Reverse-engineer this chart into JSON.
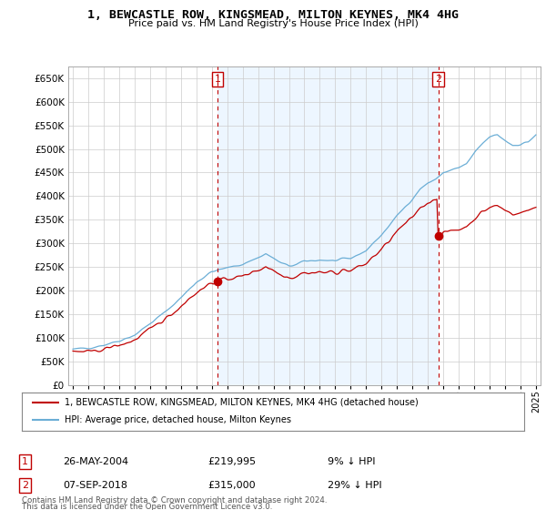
{
  "title": "1, BEWCASTLE ROW, KINGSMEAD, MILTON KEYNES, MK4 4HG",
  "subtitle": "Price paid vs. HM Land Registry's House Price Index (HPI)",
  "sale1_date": "26-MAY-2004",
  "sale1_price": 219995,
  "sale2_date": "07-SEP-2018",
  "sale2_price": 315000,
  "sale1_pct": "9% ↓ HPI",
  "sale2_pct": "29% ↓ HPI",
  "legend_line1": "1, BEWCASTLE ROW, KINGSMEAD, MILTON KEYNES, MK4 4HG (detached house)",
  "legend_line2": "HPI: Average price, detached house, Milton Keynes",
  "footer1": "Contains HM Land Registry data © Crown copyright and database right 2024.",
  "footer2": "This data is licensed under the Open Government Licence v3.0.",
  "hpi_color": "#6baed6",
  "price_color": "#c00000",
  "shade_color": "#ddeeff",
  "background_color": "#ffffff",
  "ylim": [
    0,
    675000
  ],
  "yticks": [
    0,
    50000,
    100000,
    150000,
    200000,
    250000,
    300000,
    350000,
    400000,
    450000,
    500000,
    550000,
    600000,
    650000
  ],
  "sale1_x": 2004.38,
  "sale2_x": 2018.67,
  "xlim_left": 1994.7,
  "xlim_right": 2025.3
}
